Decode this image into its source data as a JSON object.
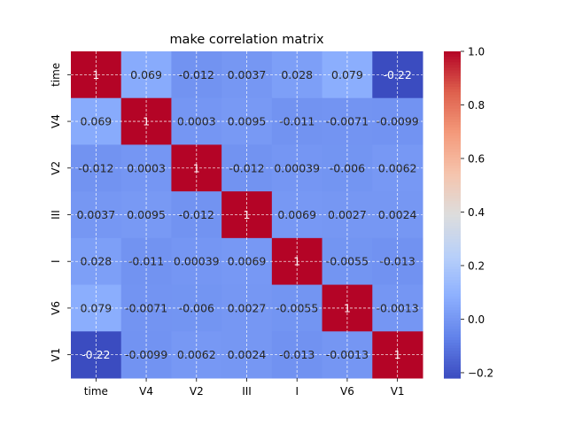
{
  "chart_data": {
    "type": "heatmap",
    "title": "make correlation matrix",
    "row_labels": [
      "time",
      "V4",
      "V2",
      "III",
      "I",
      "V6",
      "V1"
    ],
    "col_labels": [
      "time",
      "V4",
      "V2",
      "III",
      "I",
      "V6",
      "V1"
    ],
    "values": [
      [
        1,
        0.069,
        -0.012,
        0.0037,
        0.028,
        0.079,
        -0.22
      ],
      [
        0.069,
        1,
        0.0003,
        0.0095,
        -0.011,
        -0.0071,
        -0.0099
      ],
      [
        -0.012,
        0.0003,
        1,
        -0.012,
        0.00039,
        -0.006,
        0.0062
      ],
      [
        0.0037,
        0.0095,
        -0.012,
        1,
        0.0069,
        0.0027,
        0.0024
      ],
      [
        0.028,
        -0.011,
        0.00039,
        0.0069,
        1,
        -0.0055,
        -0.013
      ],
      [
        0.079,
        -0.0071,
        -0.006,
        0.0027,
        -0.0055,
        1,
        -0.0013
      ],
      [
        -0.22,
        -0.0099,
        0.0062,
        0.0024,
        -0.013,
        -0.0013,
        1
      ]
    ],
    "annotations": [
      [
        "1",
        "0.069",
        "-0.012",
        "0.0037",
        "0.028",
        "0.079",
        "-0.22"
      ],
      [
        "0.069",
        "1",
        "0.0003",
        "0.0095",
        "-0.011",
        "-0.0071",
        "-0.0099"
      ],
      [
        "-0.012",
        "0.0003",
        "1",
        "-0.012",
        "0.00039",
        "-0.006",
        "0.0062"
      ],
      [
        "0.0037",
        "0.0095",
        "-0.012",
        "1",
        "0.0069",
        "0.0027",
        "0.0024"
      ],
      [
        "0.028",
        "-0.011",
        "0.00039",
        "0.0069",
        "1",
        "-0.0055",
        "-0.013"
      ],
      [
        "0.079",
        "-0.0071",
        "-0.006",
        "0.0027",
        "-0.0055",
        "1",
        "-0.0013"
      ],
      [
        "-0.22",
        "-0.0099",
        "0.0062",
        "0.0024",
        "-0.013",
        "-0.0013",
        "1"
      ]
    ],
    "colormap": "coolwarm",
    "colorbar": {
      "min": -0.22,
      "max": 1.0,
      "ticks": [
        -0.2,
        0.0,
        0.2,
        0.4,
        0.6,
        0.8,
        1.0
      ],
      "tick_labels": [
        "−0.2",
        "0.0",
        "0.2",
        "0.4",
        "0.6",
        "0.8",
        "1.0"
      ]
    },
    "grid": true
  }
}
